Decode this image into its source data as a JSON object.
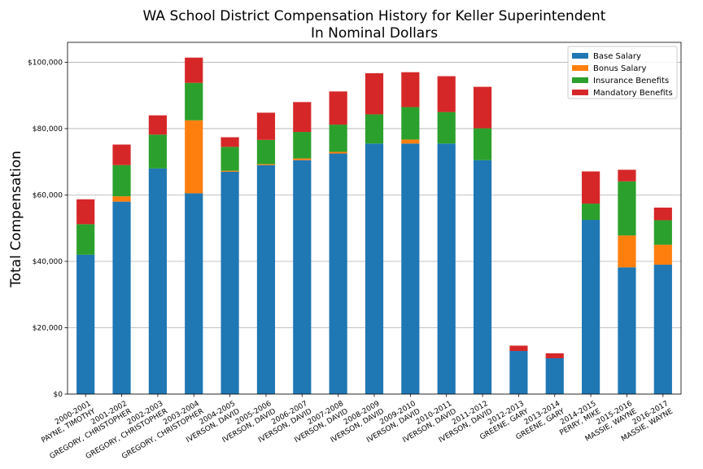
{
  "chart_data": {
    "type": "bar",
    "stacked": true,
    "title_line1": "WA School District Compensation History for Keller Superintendent",
    "title_line2": "In Nominal Dollars",
    "xlabel": "",
    "ylabel": "Total Compensation",
    "ylim": [
      0,
      106000
    ],
    "yticks": [
      0,
      20000,
      40000,
      60000,
      80000,
      100000
    ],
    "ytick_labels": [
      "$0",
      "$20,000",
      "$40,000",
      "$60,000",
      "$80,000",
      "$100,000"
    ],
    "grid": "horizontal",
    "legend_position": "top-right",
    "categories": [
      "2000-2001\nPAYNE, TIMOTHY",
      "2001-2002\nGREGORY, CHRISTOPHER",
      "2002-2003\nGREGORY, CHRISTOPHER",
      "2003-2004\nGREGORY, CHRISTOPHER",
      "2004-2005\nIVERSON, DAVID",
      "2005-2006\nIVERSON, DAVID",
      "2006-2007\nIVERSON, DAVID",
      "2007-2008\nIVERSON, DAVID",
      "2008-2009\nIVERSON, DAVID",
      "2009-2010\nIVERSON, DAVID",
      "2010-2011\nIVERSON, DAVID",
      "2011-2012\nIVERSON, DAVID",
      "2012-2013\nGREENE, GARY",
      "2013-2014\nGREENE, GARY",
      "2014-2015\nPERRY, MIKE",
      "2015-2016\nMASSIE, WAYNE",
      "2016-2017\nMASSIE, WAYNE"
    ],
    "series": [
      {
        "name": "Base Salary",
        "color": "#1f77b4",
        "values": [
          42000,
          58000,
          68000,
          60500,
          67000,
          69000,
          70500,
          72500,
          75500,
          75500,
          75500,
          70500,
          13000,
          10800,
          52500,
          38200,
          39000
        ]
      },
      {
        "name": "Bonus Salary",
        "color": "#ff7f0e",
        "values": [
          0,
          1600,
          0,
          22000,
          300,
          300,
          500,
          500,
          0,
          1200,
          0,
          0,
          0,
          0,
          0,
          9600,
          6000
        ]
      },
      {
        "name": "Insurance Benefits",
        "color": "#2ca02c",
        "values": [
          9200,
          9400,
          10200,
          11300,
          7200,
          7300,
          8000,
          8200,
          8800,
          9800,
          9500,
          9600,
          0,
          0,
          4900,
          16300,
          7400
        ]
      },
      {
        "name": "Mandatory Benefits",
        "color": "#d62728",
        "values": [
          7500,
          6200,
          5800,
          7600,
          2900,
          8200,
          9000,
          10000,
          12400,
          10500,
          10800,
          12500,
          1600,
          1500,
          9700,
          3500,
          3800
        ]
      }
    ]
  }
}
